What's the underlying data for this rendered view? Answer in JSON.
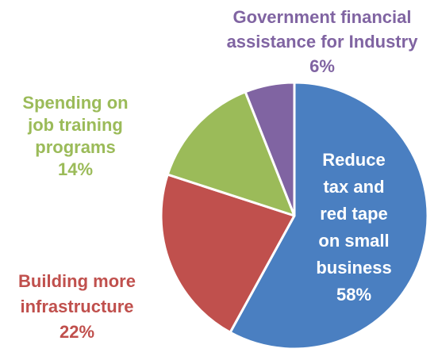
{
  "chart_data": {
    "type": "pie",
    "title": "",
    "slices": [
      {
        "name": "Reduce tax and red tape on small business",
        "value": 58,
        "label_lines": [
          "Reduce",
          "tax and",
          "red tape",
          "on small",
          "business"
        ],
        "value_label": "58%",
        "color": "#4a7fc1"
      },
      {
        "name": "Building more infrastructure",
        "value": 22,
        "label_lines": [
          "Building more",
          "infrastructure"
        ],
        "value_label": "22%",
        "color": "#c0504d"
      },
      {
        "name": "Spending on job training programs",
        "value": 14,
        "label_lines": [
          "Spending on",
          "job training",
          "programs"
        ],
        "value_label": "14%",
        "color": "#9bbb59"
      },
      {
        "name": "Government financial assistance for Industry",
        "value": 6,
        "label_lines": [
          "Government financial",
          "assistance for Industry"
        ],
        "value_label": "6%",
        "color": "#8064a2"
      }
    ],
    "start_angle_deg": 0,
    "direction": "clockwise",
    "legend": "none",
    "label_colors": {
      "inside": "#ffffff"
    }
  }
}
